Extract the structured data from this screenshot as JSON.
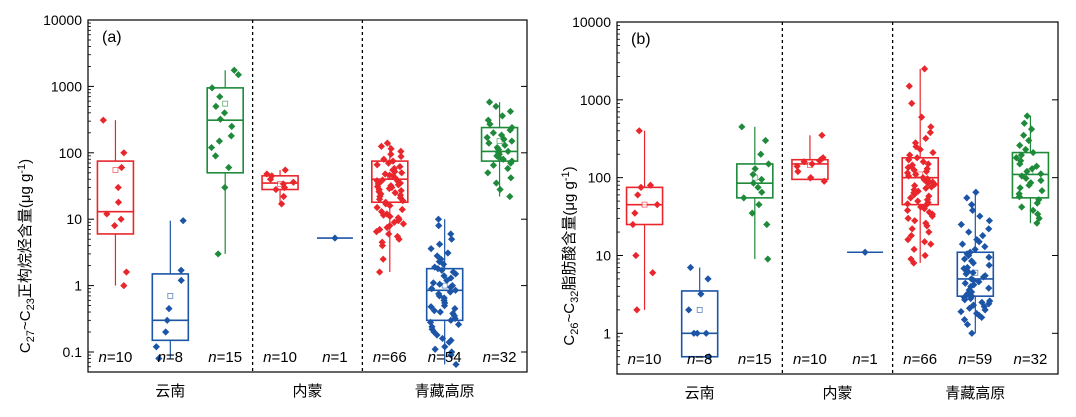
{
  "chart_data": [
    {
      "type": "box",
      "panel_label": "(a)",
      "ylabel": {
        "main": "C",
        "sub1": "27",
        "mid": "~C",
        "sub2": "23",
        "tail": "正构烷烃含量(μg g",
        "sup": "-1",
        "close": ")"
      },
      "yscale": "log",
      "ylim": [
        0.05,
        10000
      ],
      "yticks": [
        {
          "v": 0.1,
          "label": "0.1"
        },
        {
          "v": 1,
          "label": "1"
        },
        {
          "v": 10,
          "label": "10"
        },
        {
          "v": 100,
          "label": "100"
        },
        {
          "v": 1000,
          "label": "1000"
        },
        {
          "v": 10000,
          "label": "10000"
        }
      ],
      "groups": [
        "云南",
        "内蒙",
        "青藏高原"
      ],
      "boxes": [
        {
          "color": "#e8262c",
          "q1": 6,
          "median": 13,
          "q3": 75,
          "mean": 55,
          "n_label": "n",
          "n_value": "=10",
          "points": [
            310,
            100,
            60,
            30,
            18,
            12,
            10,
            8,
            1.6,
            1.0
          ]
        },
        {
          "color": "#1c54a6",
          "q1": 0.15,
          "median": 0.3,
          "q3": 1.5,
          "mean": 0.7,
          "n_label": "n",
          "n_value": "=8",
          "points": [
            9.5,
            1.7,
            1.2,
            0.45,
            0.3,
            0.2,
            0.12,
            0.08
          ]
        },
        {
          "color": "#1e8a3a",
          "q1": 50,
          "median": 310,
          "q3": 950,
          "mean": 550,
          "n_label": "n",
          "n_value": "=15",
          "points": [
            1750,
            1500,
            950,
            700,
            500,
            400,
            320,
            250,
            180,
            150,
            120,
            90,
            60,
            30,
            3
          ]
        },
        {
          "color": "#e8262c",
          "q1": 28,
          "median": 35,
          "q3": 45,
          "mean": 34,
          "n_label": "n",
          "n_value": "=10",
          "points": [
            55,
            48,
            45,
            40,
            36,
            34,
            30,
            28,
            22,
            17
          ]
        },
        {
          "color": "#1c54a6",
          "q1": 5.2,
          "median": 5.2,
          "q3": 5.2,
          "mean": 5.2,
          "n_label": "n",
          "n_value": "=1",
          "points": [
            5.2
          ]
        },
        {
          "color": "#e8262c",
          "q1": 18,
          "median": 40,
          "q3": 75,
          "mean": 45,
          "n_label": "n",
          "n_value": "=66",
          "points": [
            140,
            125,
            115,
            105,
            95,
            88,
            80,
            75,
            70,
            66,
            62,
            58,
            55,
            52,
            50,
            48,
            46,
            44,
            42,
            40,
            39,
            38,
            37,
            36,
            35,
            34,
            33,
            32,
            31,
            30,
            29,
            28,
            27,
            26,
            25,
            24,
            23,
            22,
            21,
            20,
            19,
            18,
            17,
            16,
            15,
            14,
            13,
            12,
            11.5,
            11,
            10.5,
            10,
            9.5,
            9,
            8.5,
            8,
            7.5,
            7,
            6.5,
            6,
            5.5,
            5,
            4.5,
            4,
            2.5,
            1.6
          ]
        },
        {
          "color": "#1c54a6",
          "q1": 0.3,
          "median": 0.85,
          "q3": 1.8,
          "mean": 1.0,
          "n_label": "n",
          "n_value": "=54",
          "points": [
            10,
            8,
            6,
            5,
            4.2,
            3.6,
            3.1,
            2.8,
            2.5,
            2.3,
            2.1,
            1.9,
            1.8,
            1.7,
            1.6,
            1.5,
            1.4,
            1.3,
            1.2,
            1.1,
            1.05,
            1.0,
            0.95,
            0.9,
            0.85,
            0.8,
            0.75,
            0.7,
            0.65,
            0.6,
            0.55,
            0.5,
            0.48,
            0.45,
            0.42,
            0.4,
            0.38,
            0.35,
            0.32,
            0.3,
            0.28,
            0.26,
            0.24,
            0.22,
            0.2,
            0.18,
            0.16,
            0.15,
            0.14,
            0.12,
            0.11,
            0.1,
            0.09,
            0.065
          ]
        },
        {
          "color": "#1e8a3a",
          "q1": 75,
          "median": 105,
          "q3": 240,
          "mean": 150,
          "n_label": "n",
          "n_value": "=32",
          "points": [
            580,
            500,
            420,
            360,
            310,
            270,
            240,
            220,
            200,
            185,
            170,
            160,
            150,
            140,
            130,
            120,
            112,
            105,
            100,
            95,
            90,
            85,
            80,
            75,
            70,
            65,
            58,
            50,
            42,
            35,
            28,
            22
          ]
        }
      ]
    },
    {
      "type": "box",
      "panel_label": "(b)",
      "ylabel": {
        "main": "C",
        "sub1": "26",
        "mid": "~C",
        "sub2": "32",
        "tail": "脂肪酸含量(μg g",
        "sup": "-1",
        "close": ")"
      },
      "yscale": "log",
      "ylim": [
        0.3,
        10000
      ],
      "yticks": [
        {
          "v": 1,
          "label": "1"
        },
        {
          "v": 10,
          "label": "10"
        },
        {
          "v": 100,
          "label": "100"
        },
        {
          "v": 1000,
          "label": "1000"
        },
        {
          "v": 10000,
          "label": "10000"
        }
      ],
      "groups": [
        "云南",
        "内蒙",
        "青藏高原"
      ],
      "boxes": [
        {
          "color": "#e8262c",
          "q1": 25,
          "median": 45,
          "q3": 75,
          "mean": 45,
          "n_label": "n",
          "n_value": "=10",
          "points": [
            400,
            80,
            75,
            60,
            45,
            35,
            25,
            10,
            6,
            2
          ]
        },
        {
          "color": "#1c54a6",
          "q1": 0.5,
          "median": 1,
          "q3": 3.5,
          "mean": 2,
          "n_label": "n",
          "n_value": "=8",
          "points": [
            7,
            5,
            3.2,
            2,
            1,
            1,
            1,
            0.5
          ]
        },
        {
          "color": "#1e8a3a",
          "q1": 55,
          "median": 85,
          "q3": 150,
          "mean": 100,
          "n_label": "n",
          "n_value": "=15",
          "points": [
            450,
            300,
            200,
            150,
            130,
            110,
            95,
            85,
            75,
            65,
            55,
            45,
            35,
            25,
            9
          ]
        },
        {
          "color": "#e8262c",
          "q1": 95,
          "median": 150,
          "q3": 170,
          "mean": 145,
          "n_label": "n",
          "n_value": "=10",
          "points": [
            350,
            180,
            170,
            165,
            160,
            150,
            140,
            120,
            100,
            90
          ]
        },
        {
          "color": "#1c54a6",
          "q1": 11,
          "median": 11,
          "q3": 11,
          "mean": 11,
          "n_label": "n",
          "n_value": "=1",
          "points": [
            11
          ]
        },
        {
          "color": "#e8262c",
          "q1": 45,
          "median": 100,
          "q3": 180,
          "mean": 110,
          "n_label": "n",
          "n_value": "=66",
          "points": [
            2500,
            1500,
            900,
            600,
            450,
            380,
            320,
            280,
            250,
            230,
            210,
            195,
            180,
            170,
            160,
            150,
            145,
            140,
            135,
            130,
            125,
            120,
            115,
            110,
            105,
            100,
            97,
            94,
            91,
            88,
            85,
            82,
            79,
            76,
            73,
            70,
            67,
            64,
            61,
            58,
            55,
            52,
            50,
            48,
            46,
            44,
            42,
            40,
            38,
            36,
            34,
            32,
            30,
            28,
            26,
            24,
            22,
            20,
            18,
            16,
            15,
            14,
            12,
            10,
            9,
            8
          ]
        },
        {
          "color": "#1c54a6",
          "q1": 3,
          "median": 5,
          "q3": 11,
          "mean": 6,
          "n_label": "n",
          "n_value": "=59",
          "points": [
            65,
            55,
            45,
            38,
            32,
            28,
            25,
            22,
            20,
            18,
            16,
            15,
            14,
            13,
            12,
            11,
            10.5,
            10,
            9.5,
            9,
            8.5,
            8,
            7.5,
            7,
            6.8,
            6.5,
            6.2,
            6,
            5.8,
            5.5,
            5.3,
            5,
            4.8,
            4.6,
            4.4,
            4.2,
            4,
            3.8,
            3.6,
            3.4,
            3.2,
            3,
            2.9,
            2.8,
            2.7,
            2.6,
            2.5,
            2.4,
            2.3,
            2.2,
            2.1,
            2,
            1.9,
            1.8,
            1.7,
            1.6,
            1.5,
            1.3,
            1
          ]
        },
        {
          "color": "#1e8a3a",
          "q1": 55,
          "median": 110,
          "q3": 210,
          "mean": 120,
          "n_label": "n",
          "n_value": "=32",
          "points": [
            620,
            500,
            420,
            350,
            300,
            260,
            230,
            210,
            195,
            180,
            165,
            150,
            140,
            130,
            120,
            112,
            105,
            98,
            92,
            86,
            80,
            74,
            68,
            62,
            57,
            52,
            47,
            42,
            38,
            34,
            30,
            26
          ]
        }
      ]
    }
  ]
}
